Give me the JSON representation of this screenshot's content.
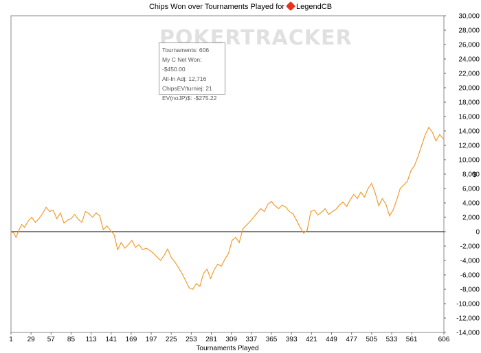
{
  "title_prefix": "Chips Won over Tournaments Played for",
  "player_name": "LegendCB",
  "watermark": "POKERTRACKER",
  "tooltip": [
    "Tournaments: 606",
    "My C Net Won: -$450.00",
    "All-In Adj: 12,716",
    "ChipsEV/turniej: 21",
    "EV(noJP)$: -$275.22"
  ],
  "colors": {
    "line": "#f29b2f",
    "zero_line": "#000000",
    "frame": "#888888"
  },
  "chart_data": {
    "type": "line",
    "title": "Chips Won over Tournaments Played for LegendCB",
    "xlabel": "Tournaments Played",
    "ylabel": "$",
    "xlim": [
      1,
      606
    ],
    "ylim": [
      -14000,
      30000
    ],
    "x_ticks": [
      1,
      29,
      57,
      85,
      113,
      141,
      169,
      197,
      225,
      253,
      281,
      309,
      337,
      365,
      393,
      421,
      449,
      477,
      505,
      533,
      561,
      606
    ],
    "y_ticks": [
      30000,
      28000,
      26000,
      24000,
      22000,
      20000,
      18000,
      16000,
      14000,
      12000,
      10000,
      8000,
      6000,
      4000,
      2000,
      0,
      -2000,
      -4000,
      -6000,
      -8000,
      -10000,
      -12000,
      -14000
    ],
    "y_tick_labels": [
      "30,000",
      "28,000",
      "26,000",
      "24,000",
      "22,000",
      "20,000",
      "18,000",
      "16,000",
      "14,000",
      "12,000",
      "10,000",
      "8,000",
      "6,000",
      "4,000",
      "2,000",
      "0",
      "-2,000",
      "-4,000",
      "-6,000",
      "-8,000",
      "-10,000",
      "-12,000",
      "-14,000"
    ],
    "grid": false,
    "series": [
      {
        "x": [
          1,
          5,
          8,
          12,
          16,
          20,
          25,
          30,
          35,
          40,
          45,
          50,
          55,
          60,
          65,
          70,
          75,
          80,
          85,
          90,
          95,
          100,
          105,
          110,
          115,
          120,
          125,
          130,
          135,
          140,
          145,
          150,
          155,
          160,
          165,
          170,
          175,
          180,
          185,
          190,
          195,
          200,
          205,
          210,
          215,
          220,
          225,
          230,
          235,
          240,
          245,
          250,
          255,
          260,
          265,
          270,
          275,
          280,
          285,
          290,
          295,
          300,
          305,
          310,
          315,
          320,
          325,
          330,
          335,
          340,
          345,
          350,
          355,
          360,
          365,
          370,
          375,
          380,
          385,
          390,
          395,
          400,
          405,
          410,
          415,
          420,
          425,
          430,
          435,
          440,
          445,
          450,
          455,
          460,
          465,
          470,
          475,
          480,
          485,
          490,
          495,
          500,
          505,
          510,
          515,
          520,
          525,
          530,
          535,
          540,
          545,
          550,
          555,
          560,
          565,
          570,
          575,
          580,
          585,
          590,
          595,
          600,
          606
        ],
        "y": [
          0,
          -200,
          -800,
          200,
          1000,
          600,
          1500,
          2000,
          1300,
          1800,
          2500,
          3400,
          2800,
          3000,
          1800,
          2600,
          1200,
          1600,
          1800,
          2400,
          1700,
          1300,
          2800,
          2500,
          2000,
          2600,
          2200,
          300,
          800,
          200,
          -400,
          -2500,
          -1500,
          -2300,
          -1800,
          -1200,
          -2200,
          -1800,
          -2500,
          -2300,
          -2600,
          -3000,
          -3500,
          -4000,
          -3300,
          -2400,
          -3600,
          -4200,
          -5000,
          -5800,
          -6800,
          -7800,
          -8000,
          -7200,
          -7600,
          -5800,
          -5200,
          -6500,
          -5300,
          -4500,
          -4800,
          -3800,
          -3000,
          -1200,
          -800,
          -1500,
          400,
          900,
          1400,
          2000,
          2600,
          3200,
          2800,
          3800,
          4200,
          3600,
          3200,
          3700,
          3400,
          2800,
          2500,
          1600,
          600,
          -200,
          200,
          2800,
          3000,
          2300,
          2700,
          3200,
          2400,
          2800,
          3100,
          3700,
          4100,
          3500,
          4400,
          5200,
          4600,
          5500,
          4800,
          6000,
          6700,
          5400,
          3600,
          4600,
          3800,
          2200,
          3000,
          4400,
          6000,
          6500,
          7000,
          8500,
          9200,
          10500,
          12000,
          13500,
          14500,
          13800,
          12600,
          13500,
          12800
        ]
      }
    ]
  }
}
